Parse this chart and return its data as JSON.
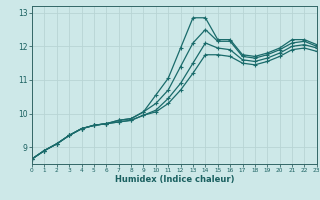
{
  "xlabel": "Humidex (Indice chaleur)",
  "bg_color": "#cde8e8",
  "grid_color": "#b8d4d4",
  "line_color": "#1a6b6b",
  "xlim": [
    0,
    23
  ],
  "ylim": [
    8.5,
    13.2
  ],
  "yticks": [
    9,
    10,
    11,
    12,
    13
  ],
  "xticks": [
    0,
    1,
    2,
    3,
    4,
    5,
    6,
    7,
    8,
    9,
    10,
    11,
    12,
    13,
    14,
    15,
    16,
    17,
    18,
    19,
    20,
    21,
    22,
    23
  ],
  "curve1_x": [
    0,
    1,
    2,
    3,
    4,
    5,
    6,
    7,
    8,
    9,
    10,
    11,
    12,
    13,
    14,
    15,
    16,
    17,
    18,
    19,
    20,
    21,
    22,
    23
  ],
  "curve1_y": [
    8.65,
    8.9,
    9.1,
    9.35,
    9.55,
    9.65,
    9.7,
    9.8,
    9.85,
    10.05,
    10.55,
    11.05,
    11.95,
    12.85,
    12.85,
    12.2,
    12.2,
    11.75,
    11.7,
    11.8,
    11.95,
    12.2,
    12.2,
    12.05
  ],
  "curve2_x": [
    0,
    1,
    2,
    3,
    4,
    5,
    6,
    7,
    8,
    9,
    10,
    11,
    12,
    13,
    14,
    15,
    16,
    17,
    18,
    19,
    20,
    21,
    22,
    23
  ],
  "curve2_y": [
    8.65,
    8.9,
    9.1,
    9.35,
    9.55,
    9.65,
    9.7,
    9.8,
    9.85,
    10.05,
    10.3,
    10.7,
    11.4,
    12.1,
    12.5,
    12.15,
    12.15,
    11.7,
    11.65,
    11.75,
    11.9,
    12.1,
    12.15,
    12.0
  ],
  "curve3_x": [
    0,
    1,
    2,
    3,
    4,
    5,
    6,
    7,
    8,
    9,
    10,
    11,
    12,
    13,
    14,
    15,
    16,
    17,
    18,
    19,
    20,
    21,
    22,
    23
  ],
  "curve3_y": [
    8.65,
    8.9,
    9.1,
    9.35,
    9.55,
    9.65,
    9.7,
    9.75,
    9.8,
    9.95,
    10.1,
    10.45,
    10.9,
    11.5,
    12.1,
    11.95,
    11.9,
    11.6,
    11.55,
    11.65,
    11.8,
    12.0,
    12.05,
    11.95
  ],
  "curve4_x": [
    0,
    1,
    2,
    3,
    4,
    5,
    6,
    7,
    8,
    9,
    10,
    11,
    12,
    13,
    14,
    15,
    16,
    17,
    18,
    19,
    20,
    21,
    22,
    23
  ],
  "curve4_y": [
    8.65,
    8.9,
    9.1,
    9.35,
    9.55,
    9.65,
    9.7,
    9.75,
    9.8,
    9.95,
    10.05,
    10.3,
    10.7,
    11.2,
    11.75,
    11.75,
    11.7,
    11.5,
    11.45,
    11.55,
    11.7,
    11.9,
    11.95,
    11.85
  ]
}
